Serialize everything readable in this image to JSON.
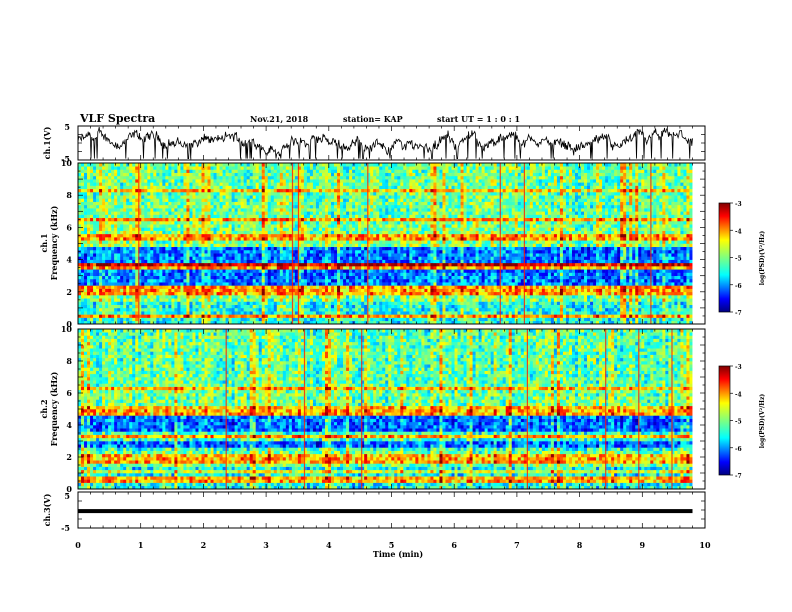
{
  "header": {
    "title": "VLF Spectra",
    "date": "Nov.21, 2018",
    "station": "station= KAP",
    "start": "start  UT =   1 : 0  : 1"
  },
  "chart_data": [
    {
      "type": "line",
      "id": "ch1-waveform",
      "ylabel": "ch.1(V)",
      "ylim": [
        -5,
        5
      ],
      "yticks": [
        "5",
        "-5"
      ],
      "xlim": [
        0,
        10
      ],
      "description_series": "noisy waveform around 0 V spanning the full 0-9.8 min window"
    },
    {
      "type": "heatmap",
      "id": "ch1-spectrogram",
      "ylabel": "ch.1\nFrequency (kHz)",
      "ylabel_lines": [
        "ch.1",
        "Frequency (kHz)"
      ],
      "ylim": [
        0,
        10
      ],
      "yticks": [
        "0",
        "2",
        "4",
        "6",
        "8",
        "10"
      ],
      "xlim": [
        0,
        10
      ],
      "colorbar": {
        "label": "log(PSD)(V²/Hz)",
        "min": -7,
        "max": -3,
        "ticks": [
          "-3",
          "-4",
          "-5",
          "-6",
          "-7"
        ]
      }
    },
    {
      "type": "heatmap",
      "id": "ch2-spectrogram",
      "ylabel": "ch.2\nFrequency (kHz)",
      "ylabel_lines": [
        "ch.2",
        "Frequency (kHz)"
      ],
      "ylim": [
        0,
        10
      ],
      "yticks": [
        "0",
        "2",
        "4",
        "6",
        "8",
        "10"
      ],
      "xlim": [
        0,
        10
      ],
      "colorbar": {
        "label": "log(PSD)(V²/Hz)",
        "min": -7,
        "max": -3,
        "ticks": [
          "-3",
          "-4",
          "-5",
          "-6",
          "-7"
        ]
      }
    },
    {
      "type": "line",
      "id": "ch3-waveform",
      "ylabel": "ch.3(V)",
      "ylim": [
        -5,
        5
      ],
      "yticks": [
        "5",
        "-5"
      ],
      "xlim": [
        0,
        10
      ],
      "constant_value": -0.3
    }
  ],
  "xaxis": {
    "label": "Time  (min)",
    "ticks": [
      "0",
      "1",
      "2",
      "3",
      "4",
      "5",
      "6",
      "7",
      "8",
      "9",
      "10"
    ],
    "data_end": 9.8
  },
  "colors": {
    "jet": [
      "#00007f",
      "#0000ff",
      "#007fff",
      "#00ffff",
      "#7fff7f",
      "#ffff00",
      "#ff7f00",
      "#ff0000",
      "#7f0000"
    ]
  }
}
